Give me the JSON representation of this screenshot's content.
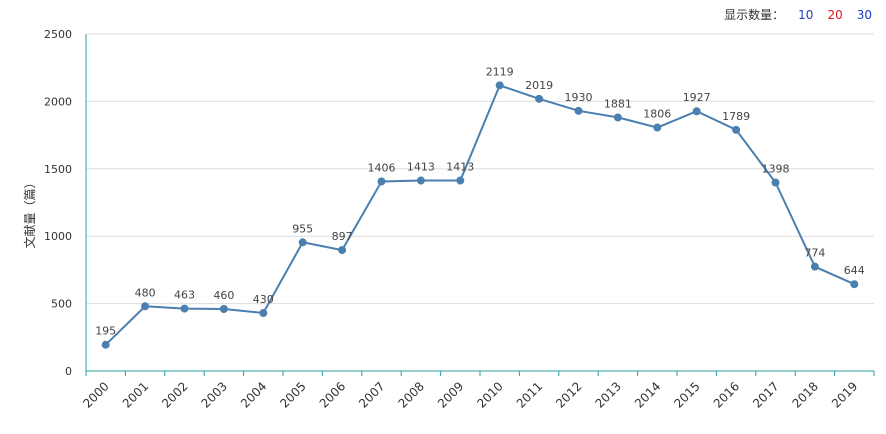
{
  "controls": {
    "label": "显示数量：",
    "options": [
      {
        "text": "10",
        "color": "#1a3fbf"
      },
      {
        "text": "20",
        "color": "#e0141e"
      },
      {
        "text": "30",
        "color": "#1a3fbf"
      }
    ]
  },
  "chart_data": {
    "type": "line",
    "title": "",
    "xlabel": "",
    "ylabel": "文献量（篇）",
    "categories": [
      "2000",
      "2001",
      "2002",
      "2003",
      "2004",
      "2005",
      "2006",
      "2007",
      "2008",
      "2009",
      "2010",
      "2011",
      "2012",
      "2013",
      "2014",
      "2015",
      "2016",
      "2017",
      "2018",
      "2019"
    ],
    "series": [
      {
        "values": [
          195,
          480,
          463,
          460,
          430,
          955,
          897,
          1406,
          1413,
          1413,
          2119,
          2019,
          1930,
          1881,
          1806,
          1927,
          1789,
          1398,
          774,
          644
        ]
      }
    ],
    "ylim": [
      0,
      2500
    ],
    "yticks": [
      0,
      500,
      1000,
      1500,
      2000,
      2500
    ],
    "grid": true,
    "line_color": "#4a7fb0",
    "axis_color": "#2aa0a0",
    "grid_color": "#dddddd"
  }
}
